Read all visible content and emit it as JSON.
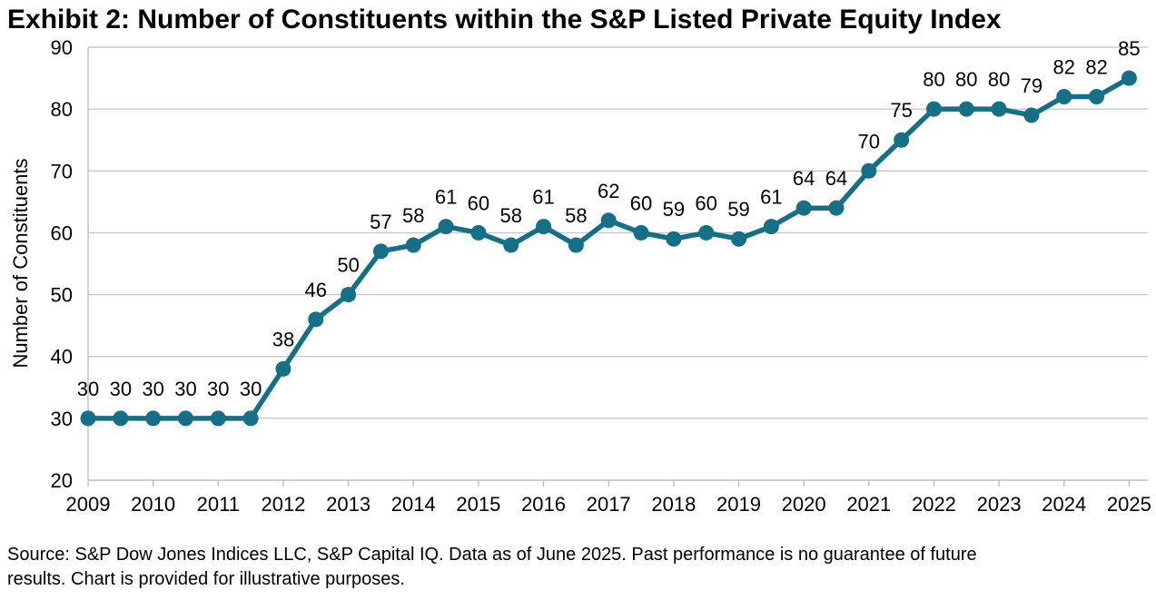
{
  "title": "Exhibit 2: Number of Constituents within the S&P Listed Private Equity Index",
  "source": {
    "line1": "Source: S&P Dow Jones Indices LLC, S&P Capital IQ. Data as of June 2025. Past performance is no guarantee of future",
    "line2": "results. Chart is provided for illustrative purposes."
  },
  "chart_data": {
    "type": "line",
    "title": "Exhibit 2: Number of Constituents within the S&P Listed Private Equity Index",
    "series_name": "Number of Constituents",
    "x": [
      2009,
      2009.5,
      2010,
      2010.5,
      2011,
      2011.5,
      2012,
      2012.5,
      2013,
      2013.5,
      2014,
      2014.5,
      2015,
      2015.5,
      2016,
      2016.5,
      2017,
      2017.5,
      2018,
      2018.5,
      2019,
      2019.5,
      2020,
      2020.5,
      2021,
      2021.5,
      2022,
      2022.5,
      2023,
      2023.5,
      2024,
      2024.5,
      2025
    ],
    "values": [
      30,
      30,
      30,
      30,
      30,
      30,
      38,
      46,
      50,
      57,
      58,
      61,
      60,
      58,
      61,
      58,
      62,
      60,
      59,
      60,
      59,
      61,
      64,
      64,
      70,
      75,
      80,
      80,
      80,
      79,
      82,
      82,
      85
    ],
    "data_labels_shown": true,
    "xlabel": "",
    "ylabel": "Number of Constituents",
    "x_tick_labels": [
      "2009",
      "2010",
      "2011",
      "2012",
      "2013",
      "2014",
      "2015",
      "2016",
      "2017",
      "2018",
      "2019",
      "2020",
      "2021",
      "2022",
      "2023",
      "2024",
      "2025"
    ],
    "y_tick_labels": [
      "20",
      "30",
      "40",
      "50",
      "60",
      "70",
      "80",
      "90"
    ],
    "ylim": [
      20,
      90
    ],
    "grid": "horizontal",
    "legend": "none",
    "line_color": "#146F87",
    "marker_color": "#146F87",
    "grid_color": "#C8C8C8",
    "axis_line_color": "#BFBFBF",
    "label_color": "#000000"
  }
}
